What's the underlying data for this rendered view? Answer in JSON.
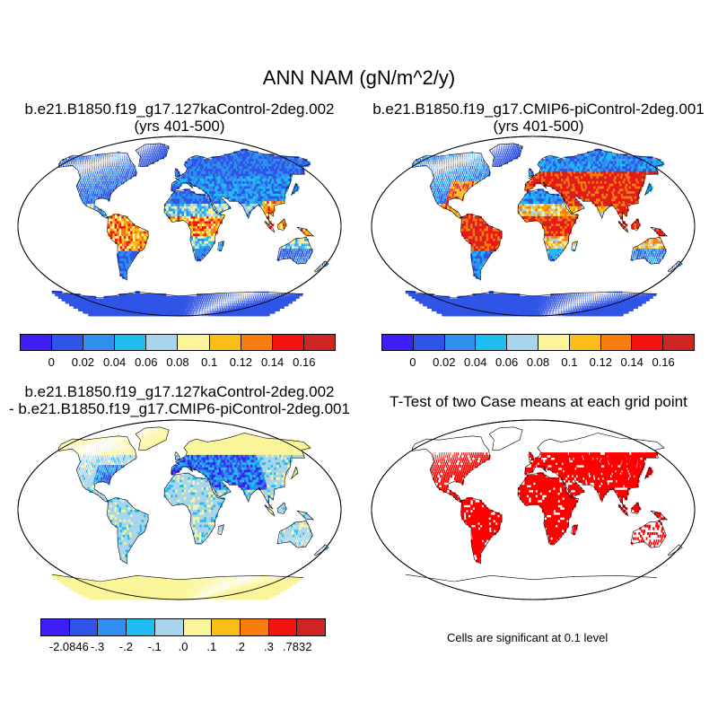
{
  "title": "ANN NAM (gN/m^2/y)",
  "panels": {
    "top_left": {
      "title_line1": "b.e21.B1850.f19_g17.127kaControl-2deg.002",
      "title_line2": "(yrs 401-500)"
    },
    "top_right": {
      "title_line1": "b.e21.B1850.f19_g17.CMIP6-piControl-2deg.001",
      "title_line2": "(yrs 401-500)"
    },
    "bottom_left": {
      "title_line1": "b.e21.B1850.f19_g17.127kaControl-2deg.002",
      "title_line2": "- b.e21.B1850.f19_g17.CMIP6-piControl-2deg.001"
    },
    "bottom_right": {
      "title_line1": "T-Test of two Case means at each grid point",
      "note": "Cells are significant at 0.1 level"
    }
  },
  "colorbar_abs": {
    "colors": [
      "#3b1ff5",
      "#2f54e6",
      "#2f8ef0",
      "#1fbdf2",
      "#a8d4ec",
      "#fbf59a",
      "#fbbd18",
      "#f87c0e",
      "#f4140f",
      "#cf2424"
    ],
    "labels": [
      "0",
      "0.02",
      "0.04",
      "0.06",
      "0.08",
      "0.1",
      "0.12",
      "0.14",
      "0.16"
    ]
  },
  "colorbar_diff": {
    "colors": [
      "#3b1ff5",
      "#2f54e6",
      "#2f8ef0",
      "#1fbdf2",
      "#a8d4ec",
      "#fbf59a",
      "#fbbd18",
      "#f87c0e",
      "#f4140f",
      "#cf2424"
    ],
    "labels": [
      "-2.0846",
      "-.3",
      "-.2",
      "-.1",
      ".0",
      ".1",
      ".2",
      ".3",
      ".7832"
    ]
  },
  "significance_color": "#ff0000",
  "ocean_color": "#ffffff"
}
